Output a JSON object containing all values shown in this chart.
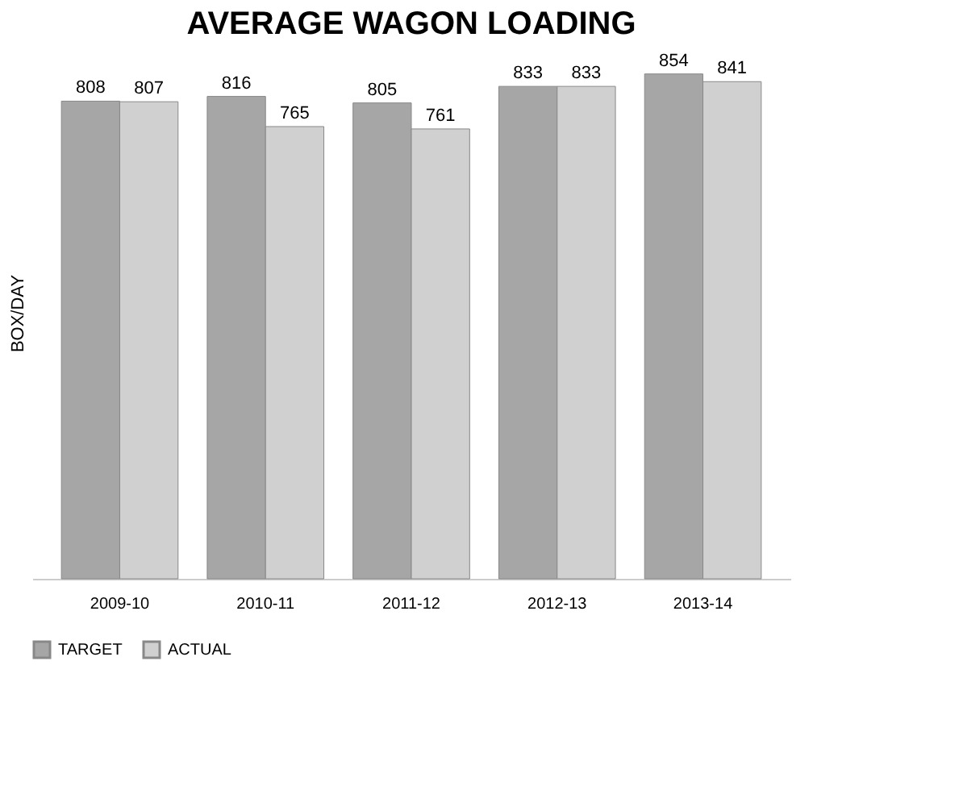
{
  "chart_data": {
    "type": "bar",
    "title": "AVERAGE WAGON LOADING",
    "ylabel": "BOX/DAY",
    "categories": [
      "2009-10",
      "2010-11",
      "2011-12",
      "2012-13",
      "2013-14"
    ],
    "series": [
      {
        "name": "TARGET",
        "color": "#a6a6a6",
        "values": [
          808,
          816,
          805,
          833,
          854
        ]
      },
      {
        "name": "ACTUAL",
        "color": "#d0d0d0",
        "values": [
          807,
          765,
          761,
          833,
          841
        ]
      }
    ],
    "data_labels": true,
    "legend": "bottom",
    "grid": false
  }
}
